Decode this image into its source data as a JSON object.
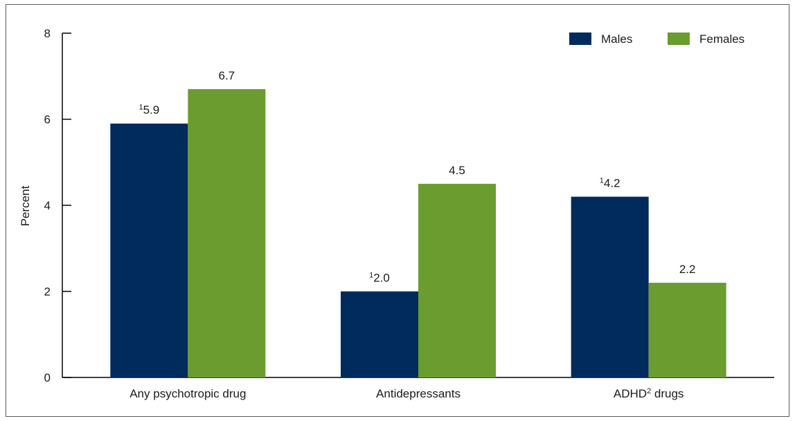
{
  "chart_data": {
    "type": "bar",
    "title": "",
    "xlabel": "",
    "ylabel": "Percent",
    "ylim": [
      0,
      8
    ],
    "yticks": [
      0,
      2,
      4,
      6,
      8
    ],
    "grid": false,
    "legend_position": "top-right",
    "categories": [
      {
        "main": "Any psychotropic drug",
        "sup": "",
        "suffix": ""
      },
      {
        "main": "Antidepressants",
        "sup": "",
        "suffix": ""
      },
      {
        "main": "ADHD",
        "sup": "2",
        "suffix": " drugs"
      }
    ],
    "series": [
      {
        "name": "Males",
        "color": "#002b5c",
        "values": [
          5.9,
          2.0,
          4.2
        ],
        "labels": [
          {
            "sup": "1",
            "text": "5.9"
          },
          {
            "sup": "1",
            "text": "2.0"
          },
          {
            "sup": "1",
            "text": "4.2"
          }
        ]
      },
      {
        "name": "Females",
        "color": "#6a9c2f",
        "values": [
          6.7,
          4.5,
          2.2
        ],
        "labels": [
          {
            "sup": "",
            "text": "6.7"
          },
          {
            "sup": "",
            "text": "4.5"
          },
          {
            "sup": "",
            "text": "2.2"
          }
        ]
      }
    ]
  }
}
